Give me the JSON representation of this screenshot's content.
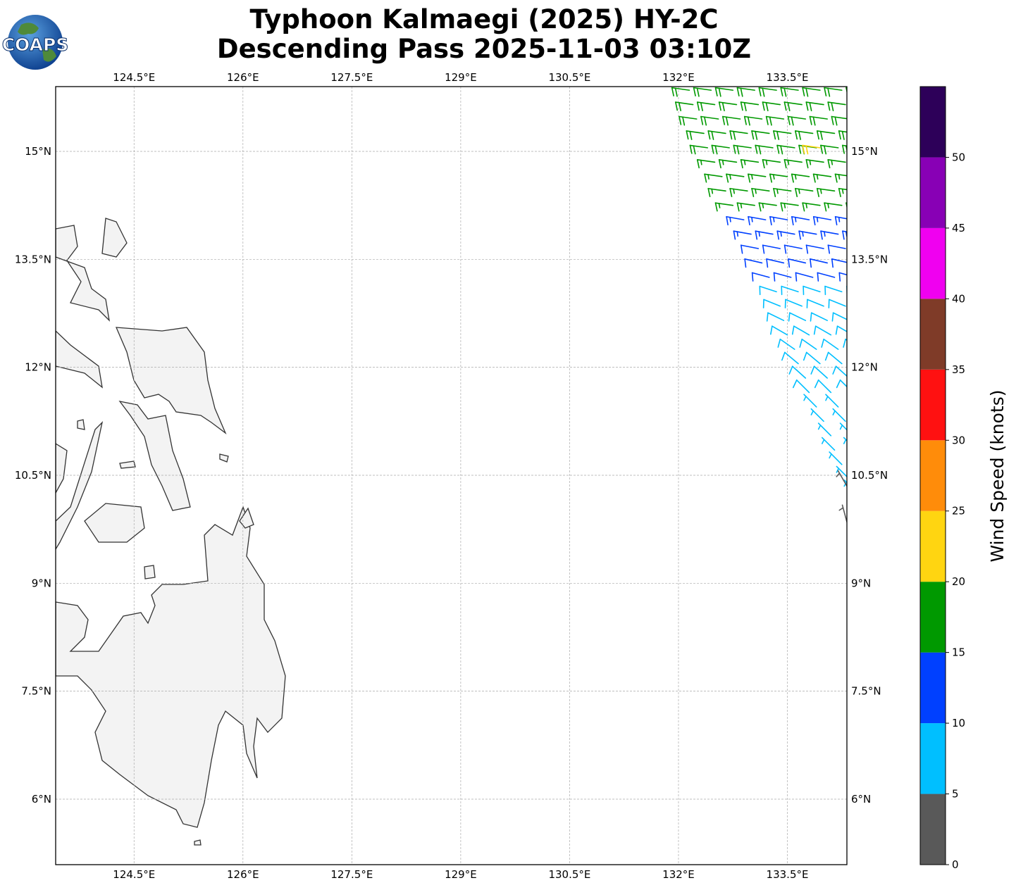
{
  "header": {
    "title_line1": "Typhoon Kalmaegi (2025) HY-2C",
    "title_line2": "Descending Pass 2025-11-03 03:10Z",
    "logo_text": "COAPS"
  },
  "map": {
    "extent": {
      "lon_min": 123.42,
      "lon_max": 134.32,
      "lat_min": 5.09,
      "lat_max": 15.9
    },
    "lon_ticks": [
      124.5,
      126,
      127.5,
      129,
      130.5,
      132,
      133.5
    ],
    "lon_labels": [
      "124.5°E",
      "126°E",
      "127.5°E",
      "129°E",
      "130.5°E",
      "132°E",
      "133.5°E"
    ],
    "lat_ticks": [
      15,
      13.5,
      12,
      10.5,
      9,
      7.5,
      6
    ],
    "lat_labels": [
      "15°N",
      "13.5°N",
      "12°N",
      "10.5°N",
      "9°N",
      "7.5°N",
      "6°N"
    ],
    "land_color": "#f3f3f3",
    "coast_color": "#333333"
  },
  "wind": {
    "units": "knots",
    "column_spacing_deg": 0.3,
    "rows": [
      {
        "lat": 15.85,
        "lon_start": 131.85,
        "speed": 18,
        "dir": 278
      },
      {
        "lat": 15.65,
        "lon_start": 131.9,
        "speed": 18,
        "dir": 278
      },
      {
        "lat": 15.45,
        "lon_start": 131.95,
        "speed": 18,
        "dir": 278
      },
      {
        "lat": 15.25,
        "lon_start": 132.05,
        "speed": 18,
        "dir": 278
      },
      {
        "lat": 15.05,
        "lon_start": 132.1,
        "speed": 18,
        "dir": 278
      },
      {
        "lat": 14.85,
        "lon_start": 132.2,
        "speed": 17,
        "dir": 278
      },
      {
        "lat": 14.65,
        "lon_start": 132.3,
        "speed": 17,
        "dir": 278
      },
      {
        "lat": 14.45,
        "lon_start": 132.35,
        "speed": 17,
        "dir": 278
      },
      {
        "lat": 14.25,
        "lon_start": 132.45,
        "speed": 16,
        "dir": 278
      },
      {
        "lat": 14.05,
        "lon_start": 132.6,
        "speed": 13,
        "dir": 280
      },
      {
        "lat": 13.85,
        "lon_start": 132.7,
        "speed": 13,
        "dir": 280
      },
      {
        "lat": 13.65,
        "lon_start": 132.8,
        "speed": 12,
        "dir": 281
      },
      {
        "lat": 13.45,
        "lon_start": 132.85,
        "speed": 12,
        "dir": 283
      },
      {
        "lat": 13.25,
        "lon_start": 132.95,
        "speed": 11,
        "dir": 285
      },
      {
        "lat": 13.05,
        "lon_start": 133.05,
        "speed": 9,
        "dir": 288
      },
      {
        "lat": 12.85,
        "lon_start": 133.1,
        "speed": 8,
        "dir": 292
      },
      {
        "lat": 12.65,
        "lon_start": 133.15,
        "speed": 8,
        "dir": 296
      },
      {
        "lat": 12.45,
        "lon_start": 133.2,
        "speed": 8,
        "dir": 300
      },
      {
        "lat": 12.25,
        "lon_start": 133.3,
        "speed": 8,
        "dir": 305
      },
      {
        "lat": 12.05,
        "lon_start": 133.35,
        "speed": 8,
        "dir": 310
      },
      {
        "lat": 11.85,
        "lon_start": 133.45,
        "speed": 8,
        "dir": 312
      },
      {
        "lat": 11.65,
        "lon_start": 133.5,
        "speed": 8,
        "dir": 315
      },
      {
        "lat": 11.45,
        "lon_start": 133.6,
        "speed": 7,
        "dir": 315
      },
      {
        "lat": 11.25,
        "lon_start": 133.7,
        "speed": 7,
        "dir": 315
      },
      {
        "lat": 11.05,
        "lon_start": 133.8,
        "speed": 7,
        "dir": 315
      },
      {
        "lat": 10.85,
        "lon_start": 133.85,
        "speed": 7,
        "dir": 315
      },
      {
        "lat": 10.65,
        "lon_start": 133.95,
        "speed": 6,
        "dir": 315
      },
      {
        "lat": 10.45,
        "lon_start": 134.05,
        "speed": 6,
        "dir": 315
      },
      {
        "lat": 10.25,
        "lon_start": 134.15,
        "speed": 6,
        "dir": 318
      },
      {
        "lat": 10.05,
        "lon_start": 134.25,
        "speed": 6,
        "dir": 320
      }
    ],
    "extra_points": [
      {
        "lat": 15.05,
        "lon": 133.95,
        "speed": 22,
        "dir": 278
      },
      {
        "lat": 10.35,
        "lon": 134.32,
        "speed": 4,
        "dir": 330
      },
      {
        "lat": 9.85,
        "lon": 134.32,
        "speed": 4,
        "dir": 345
      }
    ]
  },
  "colorbar": {
    "label": "Wind Speed (knots)",
    "bounds": [
      0,
      5,
      10,
      15,
      20,
      25,
      30,
      35,
      40,
      45,
      50,
      55
    ],
    "colors": [
      "#595959",
      "#00bfff",
      "#0040ff",
      "#009900",
      "#ffd511",
      "#ff8c0a",
      "#ff1111",
      "#7f3b28",
      "#f000f0",
      "#8800b5",
      "#2d0059"
    ],
    "tick_values": [
      0,
      5,
      10,
      15,
      20,
      25,
      30,
      35,
      40,
      45,
      50
    ],
    "tick_labels": [
      "0",
      "5",
      "10",
      "15",
      "20",
      "25",
      "30",
      "35",
      "40",
      "45",
      "50"
    ]
  }
}
